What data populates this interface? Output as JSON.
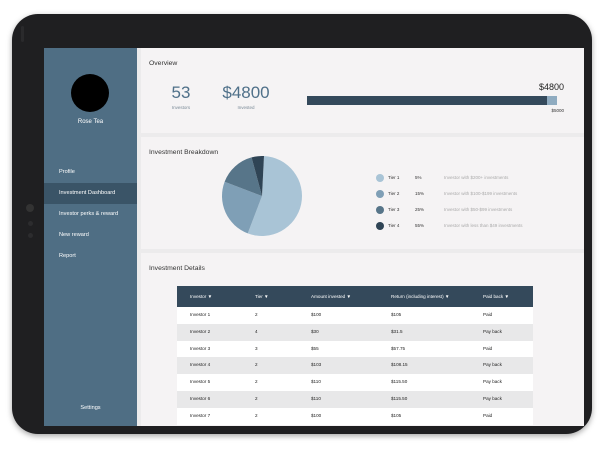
{
  "sidebar": {
    "user_name": "Rose Tea",
    "items": [
      {
        "label": "Profile"
      },
      {
        "label": "Investment Dashboard"
      },
      {
        "label": "Investor perks & reward"
      },
      {
        "label": "New reward"
      },
      {
        "label": "Report"
      }
    ],
    "settings_label": "Settings"
  },
  "overview": {
    "title": "Overview",
    "investors_value": "53",
    "investors_label": "Investors",
    "invested_value": "$4800",
    "invested_label": "Invested",
    "progress_amount": "$4800",
    "progress_max": "$5000",
    "progress_fraction": 0.96
  },
  "breakdown": {
    "title": "Investment Breakdown",
    "tiers": [
      {
        "tier": "Tier 1",
        "percent": "5%",
        "value": 5,
        "color": "#a9c4d6",
        "description": "Investor with $200+ investments"
      },
      {
        "tier": "Tier 2",
        "percent": "15%",
        "value": 15,
        "color": "#7f9fb6",
        "description": "Investor with $100-$199 investments"
      },
      {
        "tier": "Tier 3",
        "percent": "25%",
        "value": 25,
        "color": "#577589",
        "description": "Investor with $50-$99 investments"
      },
      {
        "tier": "Tier 4",
        "percent": "55%",
        "value": 55,
        "color": "#2f4455",
        "description": "Investor with less than $49 investments"
      }
    ]
  },
  "details": {
    "title": "Investment Details",
    "columns": [
      "Investor",
      "Tier",
      "Amount invested",
      "Return (including interest)",
      "Paid back"
    ],
    "rows": [
      [
        "Investor 1",
        "2",
        "$100",
        "$105",
        "Paid"
      ],
      [
        "Investor 2",
        "4",
        "$30",
        "$31.5",
        "Pay back"
      ],
      [
        "Investor 3",
        "3",
        "$55",
        "$57.75",
        "Paid"
      ],
      [
        "Investor 4",
        "2",
        "$103",
        "$108.15",
        "Pay back"
      ],
      [
        "Investor 5",
        "2",
        "$110",
        "$115.50",
        "Pay back"
      ],
      [
        "Investor 6",
        "2",
        "$110",
        "$115.50",
        "Pay back"
      ],
      [
        "Investor 7",
        "2",
        "$100",
        "$105",
        "Paid"
      ]
    ]
  },
  "icons": {
    "sort": "triangle-down"
  }
}
